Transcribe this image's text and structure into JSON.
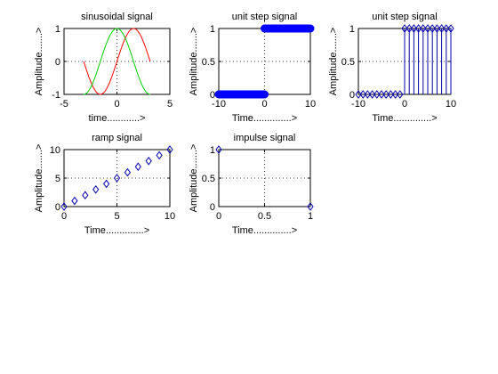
{
  "chart_data": [
    {
      "type": "line",
      "title": "sinusoidal signal",
      "xlabel": "time............>",
      "ylabel": "Amplitude.......>",
      "xlim": [
        -5,
        5
      ],
      "ylim": [
        -1,
        1
      ],
      "xticks": [
        "-5",
        "0",
        "5"
      ],
      "yticks": [
        "-1",
        "0",
        "1"
      ],
      "grid": true,
      "series": [
        {
          "color": "#ff0000",
          "function": "sin",
          "x_range": [
            -3.1416,
            3.1416
          ],
          "samples": 60
        },
        {
          "color": "#00cc00",
          "function": "cos",
          "x_range": [
            -3.1416,
            3.1416
          ],
          "samples": 60
        }
      ]
    },
    {
      "type": "scatter",
      "title": "unit step signal",
      "xlabel": "Time..............>",
      "ylabel": "Amplitude.......>",
      "xlim": [
        -10,
        10
      ],
      "ylim": [
        0,
        1
      ],
      "xticks": [
        "-10",
        "0",
        "10"
      ],
      "yticks": [
        "0",
        "0.5",
        "1"
      ],
      "grid": true,
      "marker": "circle-filled",
      "color": "#0000ff",
      "series": [
        {
          "x_range": [
            -10,
            0
          ],
          "step": 0.1,
          "y": 0
        },
        {
          "x_range": [
            0,
            10
          ],
          "step": 0.1,
          "y": 1
        }
      ]
    },
    {
      "type": "stem",
      "title": "unit step signal",
      "xlabel": "Time..............>",
      "ylabel": "Amplitude.......>",
      "xlim": [
        -10,
        10
      ],
      "ylim": [
        0,
        1
      ],
      "xticks": [
        "-10",
        "0",
        "10"
      ],
      "yticks": [
        "0",
        "0.5",
        "1"
      ],
      "grid": true,
      "marker": "diamond",
      "color": "#0000aa",
      "x": [
        -10,
        -9,
        -8,
        -7,
        -6,
        -5,
        -4,
        -3,
        -2,
        -1,
        0,
        1,
        2,
        3,
        4,
        5,
        6,
        7,
        8,
        9,
        10
      ],
      "y": [
        0,
        0,
        0,
        0,
        0,
        0,
        0,
        0,
        0,
        0,
        1,
        1,
        1,
        1,
        1,
        1,
        1,
        1,
        1,
        1,
        1
      ]
    },
    {
      "type": "scatter",
      "title": "ramp signal",
      "xlabel": "Time..............>",
      "ylabel": "Amplitude.......>",
      "xlim": [
        0,
        10
      ],
      "ylim": [
        0,
        10
      ],
      "xticks": [
        "0",
        "5",
        "10"
      ],
      "yticks": [
        "0",
        "5",
        "10"
      ],
      "grid": true,
      "marker": "diamond",
      "color": "#0000aa",
      "x": [
        0,
        1,
        2,
        3,
        4,
        5,
        6,
        7,
        8,
        9,
        10
      ],
      "y": [
        0,
        1,
        2,
        3,
        4,
        5,
        6,
        7,
        8,
        9,
        10
      ]
    },
    {
      "type": "scatter",
      "title": "impulse signal",
      "xlabel": "Time..............>",
      "ylabel": "Amplitude.......>",
      "xlim": [
        0,
        1
      ],
      "ylim": [
        0,
        1
      ],
      "xticks": [
        "0",
        "0.5",
        "1"
      ],
      "yticks": [
        "0",
        "0.5",
        "1"
      ],
      "grid": true,
      "marker": "diamond",
      "color": "#0000aa",
      "x": [
        0,
        1
      ],
      "y": [
        1,
        0
      ]
    }
  ]
}
